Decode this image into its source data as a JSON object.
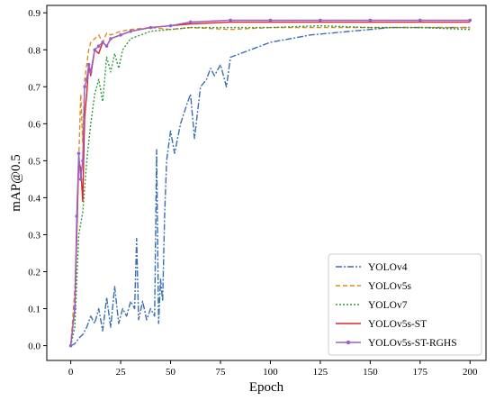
{
  "chart_data": {
    "type": "line",
    "xlabel": "Epoch",
    "ylabel": "mAP@0.5",
    "xlim": [
      -12,
      208
    ],
    "ylim": [
      -0.04,
      0.92
    ],
    "xticks": [
      0,
      25,
      50,
      75,
      100,
      125,
      150,
      175,
      200
    ],
    "yticks": [
      0.0,
      0.1,
      0.2,
      0.3,
      0.4,
      0.5,
      0.6,
      0.7,
      0.8,
      0.9
    ],
    "grid": false,
    "legend_position": "lower-right",
    "series": [
      {
        "name": "YOLOv4",
        "color": "#3b6eb4",
        "dash": "7,2,2,2",
        "marker": "none",
        "x": [
          0,
          2,
          4,
          6,
          8,
          10,
          12,
          14,
          16,
          18,
          20,
          22,
          24,
          26,
          28,
          30,
          32,
          33,
          34,
          36,
          38,
          40,
          42,
          43,
          44,
          45,
          46,
          47,
          48,
          50,
          52,
          55,
          58,
          60,
          62,
          65,
          68,
          70,
          72,
          75,
          78,
          80,
          85,
          90,
          95,
          100,
          110,
          120,
          130,
          140,
          150,
          160,
          170,
          180,
          190,
          200
        ],
        "y": [
          0.0,
          0.005,
          0.02,
          0.03,
          0.05,
          0.08,
          0.06,
          0.1,
          0.04,
          0.13,
          0.05,
          0.16,
          0.06,
          0.1,
          0.08,
          0.12,
          0.1,
          0.29,
          0.07,
          0.12,
          0.07,
          0.1,
          0.08,
          0.53,
          0.06,
          0.18,
          0.12,
          0.35,
          0.5,
          0.58,
          0.52,
          0.6,
          0.65,
          0.68,
          0.56,
          0.7,
          0.72,
          0.75,
          0.73,
          0.76,
          0.7,
          0.78,
          0.79,
          0.8,
          0.81,
          0.82,
          0.83,
          0.84,
          0.845,
          0.85,
          0.855,
          0.86,
          0.86,
          0.86,
          0.86,
          0.86
        ]
      },
      {
        "name": "YOLOv5s",
        "color": "#e08c1a",
        "dash": "5,3",
        "marker": "none",
        "x": [
          0,
          2,
          3,
          4,
          5,
          6,
          7,
          8,
          9,
          10,
          12,
          14,
          16,
          18,
          20,
          25,
          30,
          40,
          50,
          60,
          80,
          100,
          125,
          150,
          175,
          200
        ],
        "y": [
          0.0,
          0.15,
          0.3,
          0.5,
          0.68,
          0.55,
          0.72,
          0.76,
          0.8,
          0.82,
          0.83,
          0.84,
          0.82,
          0.845,
          0.84,
          0.85,
          0.855,
          0.86,
          0.855,
          0.86,
          0.855,
          0.86,
          0.86,
          0.86,
          0.86,
          0.86
        ]
      },
      {
        "name": "YOLOv7",
        "color": "#2e9a3a",
        "dash": "2,2",
        "marker": "none",
        "x": [
          0,
          2,
          4,
          6,
          8,
          10,
          12,
          14,
          16,
          18,
          20,
          22,
          24,
          26,
          30,
          35,
          40,
          50,
          60,
          80,
          100,
          125,
          150,
          175,
          200
        ],
        "y": [
          0.0,
          0.05,
          0.3,
          0.36,
          0.5,
          0.6,
          0.68,
          0.72,
          0.66,
          0.78,
          0.74,
          0.79,
          0.75,
          0.8,
          0.83,
          0.84,
          0.85,
          0.855,
          0.86,
          0.86,
          0.86,
          0.865,
          0.86,
          0.86,
          0.855
        ]
      },
      {
        "name": "YOLOv5s-ST",
        "color": "#d62728",
        "dash": "",
        "marker": "none",
        "x": [
          0,
          2,
          3,
          4,
          5,
          6,
          7,
          8,
          9,
          10,
          12,
          14,
          16,
          18,
          20,
          25,
          30,
          40,
          50,
          60,
          80,
          100,
          125,
          150,
          175,
          200
        ],
        "y": [
          0.0,
          0.1,
          0.3,
          0.5,
          0.48,
          0.39,
          0.62,
          0.68,
          0.76,
          0.73,
          0.8,
          0.79,
          0.82,
          0.81,
          0.83,
          0.84,
          0.85,
          0.86,
          0.865,
          0.87,
          0.875,
          0.875,
          0.875,
          0.875,
          0.875,
          0.875
        ]
      },
      {
        "name": "YOLOv5s-ST-RGHS",
        "color": "#9a60c6",
        "dash": "",
        "marker": "dot",
        "x": [
          0,
          2,
          3,
          4,
          5,
          6,
          7,
          8,
          9,
          10,
          12,
          14,
          16,
          18,
          20,
          25,
          30,
          40,
          50,
          60,
          80,
          100,
          125,
          150,
          175,
          200
        ],
        "y": [
          0.0,
          0.1,
          0.35,
          0.52,
          0.45,
          0.5,
          0.7,
          0.72,
          0.76,
          0.74,
          0.8,
          0.81,
          0.82,
          0.81,
          0.83,
          0.84,
          0.85,
          0.86,
          0.865,
          0.875,
          0.88,
          0.88,
          0.88,
          0.88,
          0.88,
          0.88
        ]
      }
    ]
  }
}
